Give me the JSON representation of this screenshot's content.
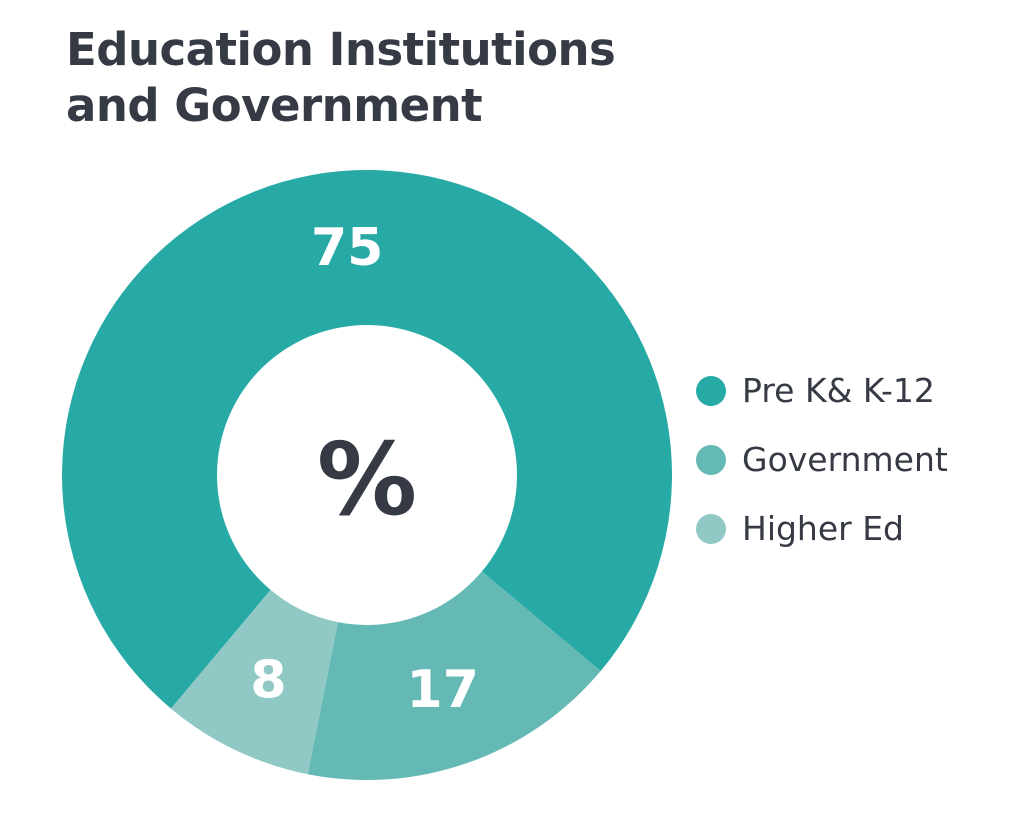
{
  "chart_data": {
    "type": "pie",
    "title_lines": [
      "Education Institutions",
      "and Government"
    ],
    "center_label": "%",
    "slices": [
      {
        "label": "Pre K& K-12",
        "value": 75,
        "color": "#27aaa6"
      },
      {
        "label": "Government",
        "value": 17,
        "color": "#64b9b4"
      },
      {
        "label": "Higher Ed",
        "value": 8,
        "color": "#90c8c5"
      }
    ],
    "legend_position": "right"
  },
  "colors": {
    "title": "#363a45",
    "value_label": "#ffffff",
    "center_label": "#363a45",
    "background": "#ffffff"
  }
}
